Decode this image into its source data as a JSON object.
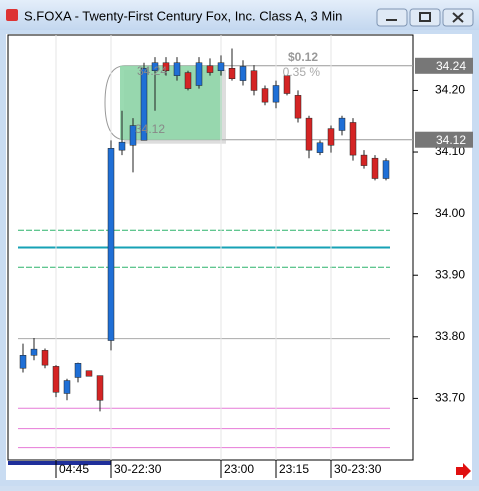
{
  "chart_data": {
    "type": "candlestick",
    "title": "S.FOXA - Twenty-First Century Fox, Inc. Class A, 3 Min",
    "categories": [
      null,
      null,
      null,
      "04:45",
      null,
      null,
      null,
      null,
      "30-22:30",
      null,
      null,
      null,
      null,
      null,
      null,
      null,
      null,
      null,
      "23:00",
      null,
      null,
      null,
      null,
      "23:15",
      null,
      null,
      null,
      null,
      "30-23:30",
      null,
      null,
      null,
      null,
      null
    ],
    "open": [
      33.749,
      33.77,
      33.778,
      33.752,
      33.708,
      33.734,
      33.745,
      33.737,
      33.794,
      34.103,
      34.111,
      34.119,
      34.232,
      34.245,
      34.224,
      34.229,
      34.208,
      34.24,
      34.232,
      34.236,
      34.216,
      34.232,
      34.203,
      34.181,
      34.224,
      34.192,
      34.155,
      34.099,
      34.138,
      34.135,
      34.148,
      34.095,
      34.09,
      34.057
    ],
    "high": [
      33.789,
      33.798,
      33.781,
      33.754,
      33.732,
      33.758,
      33.745,
      33.737,
      34.119,
      34.167,
      34.155,
      34.245,
      34.254,
      34.254,
      34.254,
      34.232,
      34.254,
      34.252,
      34.257,
      34.268,
      34.249,
      34.241,
      34.208,
      34.216,
      34.224,
      34.2,
      34.159,
      34.119,
      34.143,
      34.159,
      34.155,
      34.103,
      34.095,
      34.09
    ],
    "low": [
      33.742,
      33.762,
      33.749,
      33.702,
      33.697,
      33.726,
      33.736,
      33.679,
      33.778,
      34.095,
      34.067,
      34.119,
      34.167,
      34.224,
      34.216,
      34.2,
      34.203,
      34.224,
      34.224,
      34.216,
      34.208,
      34.192,
      34.176,
      34.171,
      34.192,
      34.148,
      34.09,
      34.095,
      34.099,
      34.127,
      34.086,
      34.073,
      34.054,
      34.054
    ],
    "close": [
      33.77,
      33.78,
      33.754,
      33.71,
      33.729,
      33.757,
      33.736,
      33.697,
      34.106,
      34.116,
      34.143,
      34.236,
      34.245,
      34.232,
      34.245,
      34.203,
      34.245,
      34.229,
      34.245,
      34.219,
      34.239,
      34.2,
      34.181,
      34.208,
      34.195,
      34.155,
      34.103,
      34.115,
      34.111,
      34.155,
      34.095,
      34.078,
      34.057,
      34.086
    ],
    "up_color": "#1f6fd6",
    "down_color": "#d42424",
    "ylim": [
      33.6,
      34.29
    ],
    "yticks": [
      {
        "value": 33.7,
        "label": "33.70"
      },
      {
        "value": 33.8,
        "label": "33.80"
      },
      {
        "value": 33.9,
        "label": "33.90"
      },
      {
        "value": 34.0,
        "label": "34.00"
      },
      {
        "value": 34.1,
        "label": "34.10"
      },
      {
        "value": 34.2,
        "label": "34.20"
      }
    ],
    "grid": false,
    "levels": [
      {
        "value": 33.973,
        "color": "#2db36b",
        "style": "dashed"
      },
      {
        "value": 33.945,
        "color": "#16a2b5",
        "style": "solid"
      },
      {
        "value": 33.913,
        "color": "#2db36b",
        "style": "dashed"
      },
      {
        "value": 33.797,
        "color": "#aaaaaa",
        "style": "solid"
      },
      {
        "value": 33.684,
        "color": "#e67ad7",
        "style": "solid"
      },
      {
        "value": 33.651,
        "color": "#e67ad7",
        "style": "solid"
      },
      {
        "value": 33.62,
        "color": "#e67ad7",
        "style": "solid"
      }
    ],
    "price_tags": [
      34.24,
      34.12
    ],
    "measure": {
      "low": 34.12,
      "high": 34.24,
      "change": 0.12,
      "change_label": "$0.12",
      "percent": 0.35,
      "percent_label": "0.35 %"
    }
  }
}
